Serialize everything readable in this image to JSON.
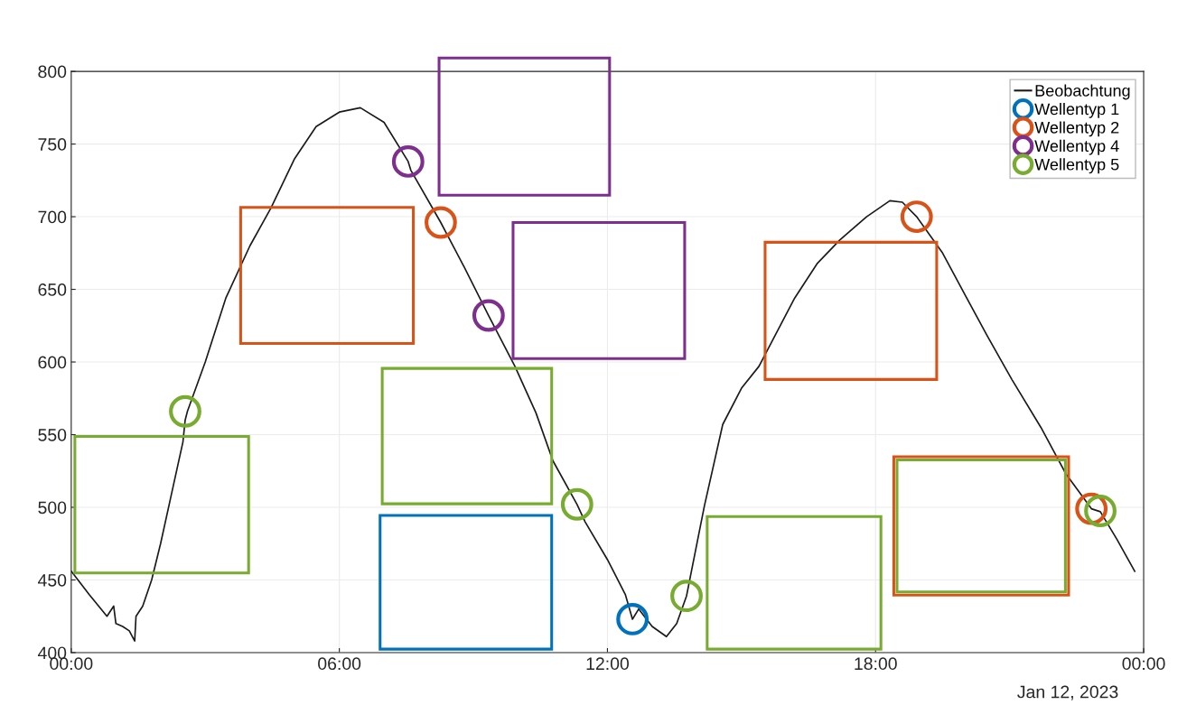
{
  "chart_data": {
    "type": "line",
    "xlim": [
      0,
      24
    ],
    "ylim": [
      400,
      800
    ],
    "xticks": [
      {
        "value": 0,
        "label": "00:00"
      },
      {
        "value": 6,
        "label": "06:00"
      },
      {
        "value": 12,
        "label": "12:00"
      },
      {
        "value": 18,
        "label": "18:00"
      },
      {
        "value": 24,
        "label": "00:00"
      }
    ],
    "yticks": [
      400,
      450,
      500,
      550,
      600,
      650,
      700,
      750,
      800
    ],
    "grid": true,
    "legend": "top right",
    "annotations": [
      "Jan 12, 2023"
    ],
    "series": [
      {
        "name": "Beobachtung",
        "color": "#1a1a1a",
        "marker": "none",
        "x": [
          0,
          0.4,
          0.8,
          0.95,
          1.0,
          1.15,
          1.3,
          1.42,
          1.45,
          1.6,
          1.8,
          2.0,
          2.25,
          2.5,
          2.55,
          2.6,
          3.0,
          3.46,
          4.0,
          4.47,
          5.0,
          5.48,
          6.0,
          6.47,
          7.0,
          7.54,
          7.6,
          8.27,
          8.8,
          9.34,
          9.93,
          10.4,
          10.78,
          11.32,
          11.5,
          12.0,
          12.4,
          12.56,
          12.7,
          13.0,
          13.32,
          13.55,
          13.77,
          14.17,
          14.58,
          15.0,
          15.39,
          16.19,
          16.7,
          17.2,
          17.8,
          18.32,
          18.6,
          18.92,
          19.5,
          20.04,
          20.5,
          21.05,
          21.7,
          22.26,
          22.83,
          23.03,
          23.4,
          23.8
        ],
        "values": [
          456,
          440,
          425,
          432,
          420,
          418,
          415,
          408,
          425,
          432,
          450,
          475,
          510,
          545,
          560,
          566,
          600,
          644,
          680,
          706,
          740,
          762,
          772,
          775,
          765,
          738,
          732,
          696,
          665,
          632,
          597,
          565,
          532,
          502,
          490,
          464,
          440,
          423,
          430,
          418,
          411,
          420,
          439,
          501,
          557,
          582,
          597,
          644,
          668,
          684,
          700,
          711,
          710,
          700,
          675,
          644,
          618,
          588,
          555,
          523,
          499,
          497,
          478,
          456
        ]
      },
      {
        "name": "Wellentyp 1",
        "type": "scatter",
        "color": "#0072bd",
        "marker": "circle",
        "x": [
          12.56
        ],
        "values": [
          423
        ]
      },
      {
        "name": "Wellentyp 2",
        "type": "scatter",
        "color": "#d95319",
        "marker": "circle",
        "x": [
          8.27,
          18.92,
          22.83
        ],
        "values": [
          696,
          700,
          499
        ]
      },
      {
        "name": "Wellentyp 4",
        "type": "scatter",
        "color": "#7e2f8e",
        "marker": "circle",
        "x": [
          7.54,
          9.34
        ],
        "values": [
          738,
          632
        ]
      },
      {
        "name": "Wellentyp 5",
        "type": "scatter",
        "color": "#77ac30",
        "marker": "circle",
        "x": [
          2.55,
          11.32,
          13.77,
          23.03
        ],
        "values": [
          566,
          502,
          439,
          497.5
        ]
      }
    ]
  }
}
